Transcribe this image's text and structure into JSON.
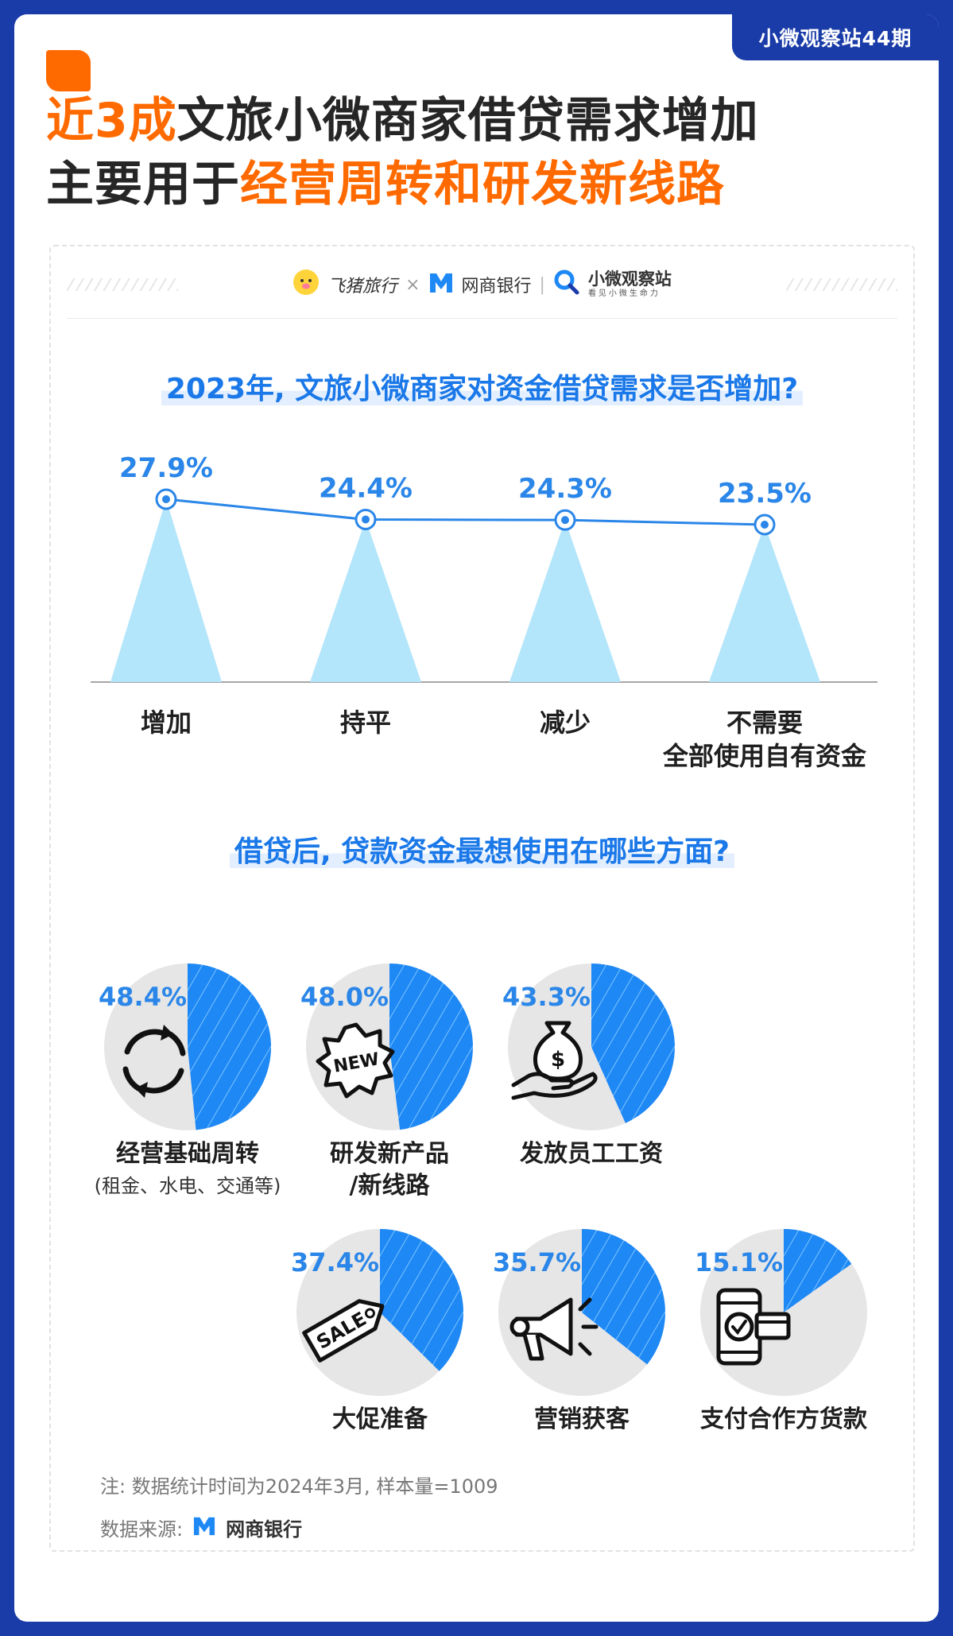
{
  "header": {
    "issue_tab": "小微观察站44期",
    "headline_line1_hl": "近3成",
    "headline_line1_rest": "文旅小微商家借贷需求增加",
    "headline_line2_pre": "主要用于",
    "headline_line2_hl": "经营周转和研发新线路"
  },
  "logos": {
    "feizhu": "飞猪旅行",
    "times": "×",
    "mybank": "网商银行",
    "sep": "|",
    "station": "小微观察站",
    "station_sub": "看见小微生命力"
  },
  "colors": {
    "accent_orange": "#ff6a00",
    "accent_blue": "#1a78e8",
    "frame_blue": "#1a3ca8",
    "cone_blue": "#b3e5fb",
    "pie_blue": "#1e88f5",
    "pie_grey": "#e6e6e6"
  },
  "chart_data": [
    {
      "type": "line",
      "title": "2023年, 文旅小微商家对资金借贷需求是否增加?",
      "categories": [
        "增加",
        "持平",
        "减少",
        "不需要\n全部使用自有资金"
      ],
      "values": [
        27.9,
        24.4,
        24.3,
        23.5
      ],
      "value_labels": [
        "27.9%",
        "24.4%",
        "24.3%",
        "23.5%"
      ],
      "unit": "%"
    },
    {
      "type": "pie",
      "title": "借贷后, 贷款资金最想使用在哪些方面?",
      "items": [
        {
          "label": "经营基础周转",
          "sublabel": "(租金、水电、交通等)",
          "value": 48.4,
          "value_label": "48.4%",
          "icon": "cycle-arrows-icon"
        },
        {
          "label": "研发新产品\n/新线路",
          "sublabel": "",
          "value": 48.0,
          "value_label": "48.0%",
          "icon": "new-badge-icon"
        },
        {
          "label": "发放员工工资",
          "sublabel": "",
          "value": 43.3,
          "value_label": "43.3%",
          "icon": "money-bag-hand-icon"
        },
        {
          "label": "大促准备",
          "sublabel": "",
          "value": 37.4,
          "value_label": "37.4%",
          "icon": "sale-tag-icon"
        },
        {
          "label": "营销获客",
          "sublabel": "",
          "value": 35.7,
          "value_label": "35.7%",
          "icon": "megaphone-icon"
        },
        {
          "label": "支付合作方货款",
          "sublabel": "",
          "value": 15.1,
          "value_label": "15.1%",
          "icon": "phone-card-payment-icon"
        }
      ]
    }
  ],
  "footer": {
    "note": "注: 数据统计时间为2024年3月, 样本量=1009",
    "source_label": "数据来源:",
    "source_name": "网商银行"
  }
}
